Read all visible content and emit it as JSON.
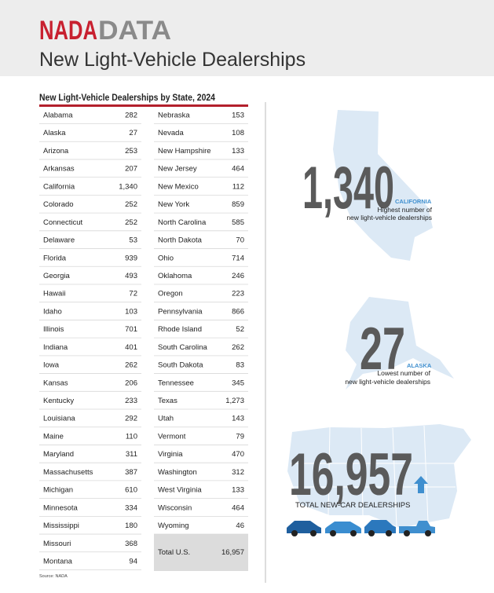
{
  "header": {
    "brand_red": "NADA",
    "brand_gray": "DATA",
    "title": "New Light-Vehicle Dealerships"
  },
  "table": {
    "title": "New Light-Vehicle Dealerships by State, 2024",
    "left": [
      [
        "Alabama",
        282
      ],
      [
        "Alaska",
        27
      ],
      [
        "Arizona",
        253
      ],
      [
        "Arkansas",
        207
      ],
      [
        "California",
        "1,340"
      ],
      [
        "Colorado",
        252
      ],
      [
        "Connecticut",
        252
      ],
      [
        "Delaware",
        53
      ],
      [
        "Florida",
        939
      ],
      [
        "Georgia",
        493
      ],
      [
        "Hawaii",
        72
      ],
      [
        "Idaho",
        103
      ],
      [
        "Illinois",
        701
      ],
      [
        "Indiana",
        401
      ],
      [
        "Iowa",
        262
      ],
      [
        "Kansas",
        206
      ],
      [
        "Kentucky",
        233
      ],
      [
        "Louisiana",
        292
      ],
      [
        "Maine",
        110
      ],
      [
        "Maryland",
        311
      ],
      [
        "Massachusetts",
        387
      ],
      [
        "Michigan",
        610
      ],
      [
        "Minnesota",
        334
      ],
      [
        "Mississippi",
        180
      ],
      [
        "Missouri",
        368
      ],
      [
        "Montana",
        94
      ]
    ],
    "right": [
      [
        "Nebraska",
        153
      ],
      [
        "Nevada",
        108
      ],
      [
        "New Hampshire",
        133
      ],
      [
        "New Jersey",
        464
      ],
      [
        "New Mexico",
        112
      ],
      [
        "New York",
        859
      ],
      [
        "North Carolina",
        585
      ],
      [
        "North Dakota",
        70
      ],
      [
        "Ohio",
        714
      ],
      [
        "Oklahoma",
        246
      ],
      [
        "Oregon",
        223
      ],
      [
        "Pennsylvania",
        866
      ],
      [
        "Rhode Island",
        52
      ],
      [
        "South Carolina",
        262
      ],
      [
        "South Dakota",
        83
      ],
      [
        "Tennessee",
        345
      ],
      [
        "Texas",
        "1,273"
      ],
      [
        "Utah",
        143
      ],
      [
        "Vermont",
        79
      ],
      [
        "Virginia",
        470
      ],
      [
        "Washington",
        312
      ],
      [
        "West Virginia",
        133
      ],
      [
        "Wisconsin",
        464
      ],
      [
        "Wyoming",
        46
      ]
    ],
    "total": [
      "Total U.S.",
      "16,957"
    ]
  },
  "highlights": [
    {
      "value": "1,340",
      "state": "CALIFORNIA",
      "caption": [
        "Highest number of",
        "new light-vehicle dealerships"
      ]
    },
    {
      "value": "27",
      "state": "ALASKA",
      "caption": [
        "Lowest number of",
        "new light-vehicle dealerships"
      ]
    }
  ],
  "total_callout": {
    "value": "16,957",
    "caption": "TOTAL NEW-CAR DEALERSHIPS"
  },
  "source": "Source: NADA"
}
